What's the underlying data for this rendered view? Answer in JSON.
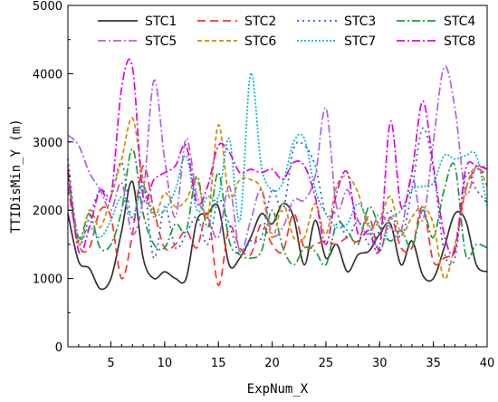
{
  "chart_data": {
    "type": "line",
    "title": "",
    "xlabel": "ExpNum_X",
    "ylabel": "TTIDisMin_Y (m)",
    "xlim": [
      1,
      40
    ],
    "ylim": [
      0,
      5000
    ],
    "x_ticks": [
      "5",
      "10",
      "15",
      "20",
      "25",
      "30",
      "35",
      "40"
    ],
    "y_ticks": [
      "0",
      "1000",
      "2000",
      "3000",
      "4000",
      "5000"
    ],
    "grid": false,
    "legend_position": "top, inside plot, 4 columns",
    "x": [
      1,
      2,
      3,
      4,
      5,
      6,
      7,
      8,
      9,
      10,
      11,
      12,
      13,
      14,
      15,
      16,
      17,
      18,
      19,
      20,
      21,
      22,
      23,
      24,
      25,
      26,
      27,
      28,
      29,
      30,
      31,
      32,
      33,
      34,
      35,
      36,
      37,
      38,
      39,
      40
    ],
    "series": [
      {
        "name": "STC1",
        "color": "#333333",
        "dash": "solid",
        "values": [
          1950,
          1250,
          1150,
          850,
          1000,
          1700,
          2420,
          1300,
          1000,
          1100,
          1000,
          1000,
          1850,
          1950,
          2050,
          1200,
          1300,
          1600,
          1950,
          1800,
          2100,
          1900,
          1200,
          1850,
          1300,
          1500,
          1100,
          1350,
          1400,
          1650,
          1800,
          1200,
          1550,
          1050,
          1000,
          1450,
          1950,
          1850,
          1200,
          1100
        ]
      },
      {
        "name": "STC2",
        "color": "#ff3030",
        "dash": "9,5",
        "values": [
          2350,
          1500,
          1450,
          2000,
          1900,
          1000,
          1650,
          2650,
          2000,
          1450,
          1500,
          1700,
          1450,
          1950,
          900,
          1750,
          1450,
          1350,
          1800,
          1500,
          1400,
          1950,
          1450,
          1500,
          1550,
          1500,
          1600,
          1550,
          1900,
          1400,
          1900,
          1450,
          1450,
          2050,
          1250,
          1300,
          1450,
          2300,
          2600,
          2500
        ]
      },
      {
        "name": "STC3",
        "color": "#1f5fe0",
        "dash": "2,4",
        "values": [
          2750,
          1550,
          1900,
          2300,
          2200,
          2700,
          1850,
          2400,
          1300,
          2050,
          1450,
          1650,
          1900,
          1500,
          2150,
          1800,
          1350,
          1550,
          1600,
          2300,
          2000,
          2900,
          2950,
          2650,
          1950,
          1950,
          1600,
          1850,
          1500,
          1700,
          2000,
          1600,
          2300,
          3200,
          2600,
          1400,
          1300,
          2500,
          2300,
          2100
        ]
      },
      {
        "name": "STC4",
        "color": "#1a9a3e",
        "dash": "9,3,2,3",
        "values": [
          2550,
          1600,
          1950,
          1450,
          1500,
          2000,
          2900,
          1950,
          1500,
          1450,
          1800,
          1700,
          2500,
          1750,
          2550,
          1550,
          1350,
          1300,
          1400,
          2000,
          1450,
          1200,
          1450,
          1400,
          1200,
          1800,
          1700,
          1500,
          2050,
          1750,
          1550,
          1700,
          1450,
          2000,
          1600,
          2300,
          2650,
          1350,
          1500,
          1450
        ]
      },
      {
        "name": "STC5",
        "color": "#b060e8",
        "dash": "9,3,2,3",
        "values": [
          3100,
          2950,
          2550,
          2300,
          2000,
          2400,
          1650,
          2200,
          3900,
          2750,
          1900,
          3050,
          2200,
          1900,
          1600,
          2350,
          1400,
          1850,
          2300,
          1650,
          1750,
          2150,
          2150,
          2500,
          3500,
          2050,
          2300,
          1850,
          1650,
          1950,
          1750,
          1700,
          2500,
          1850,
          3000,
          4100,
          3500,
          2250,
          2650,
          2600
        ]
      },
      {
        "name": "STC6",
        "color": "#d08a00",
        "dash": "5,3",
        "values": [
          2650,
          1500,
          2000,
          1750,
          2200,
          2750,
          3350,
          2450,
          1900,
          2250,
          2050,
          2150,
          2450,
          1900,
          3250,
          2200,
          2450,
          2450,
          2300,
          1600,
          2100,
          1600,
          1600,
          2100,
          1650,
          2350,
          2500,
          2250,
          1750,
          1850,
          2200,
          1650,
          1900,
          2050,
          1800,
          1000,
          1500,
          2300,
          2650,
          2350
        ]
      },
      {
        "name": "STC7",
        "color": "#00b5c8",
        "dash": "2,2",
        "values": [
          2400,
          1600,
          1750,
          1600,
          1850,
          2200,
          1900,
          2350,
          1950,
          2000,
          2300,
          2800,
          2000,
          2200,
          2200,
          3050,
          1850,
          4000,
          2650,
          2300,
          2400,
          3000,
          3050,
          2300,
          1950,
          1750,
          1800,
          2100,
          1800,
          1400,
          1850,
          2000,
          2300,
          2350,
          2400,
          2800,
          2750,
          2800,
          2800,
          2050
        ]
      },
      {
        "name": "STC8",
        "color": "#e000e0",
        "dash": "9,3,2,3",
        "values": [
          2600,
          1400,
          1750,
          2300,
          2200,
          3800,
          4100,
          2200,
          2450,
          2550,
          2650,
          2950,
          2100,
          2350,
          2950,
          2850,
          2550,
          2600,
          2550,
          2600,
          2450,
          2700,
          2650,
          2200,
          1500,
          2250,
          2550,
          1650,
          1700,
          1450,
          3300,
          2050,
          2550,
          3600,
          2650,
          1650,
          1400,
          2600,
          2650,
          2600
        ]
      }
    ]
  }
}
